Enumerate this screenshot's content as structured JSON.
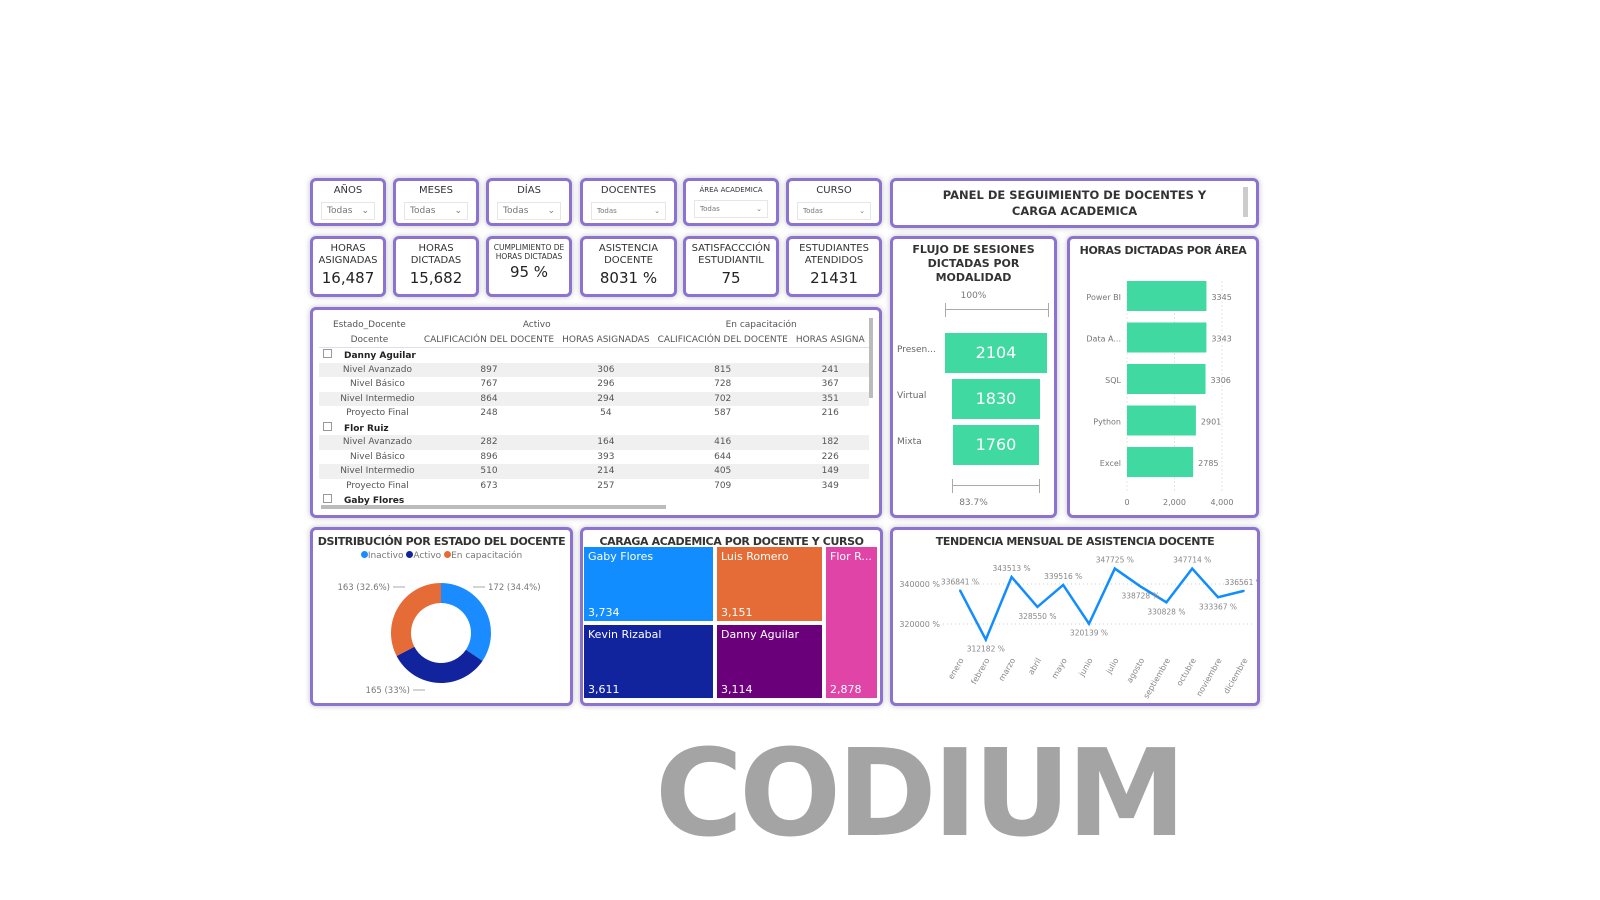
{
  "title": "PANEL DE SEGUIMIENTO DE DOCENTES Y CARGA ACADEMICA",
  "slicers": [
    {
      "label": "AÑOS",
      "value": "Todas"
    },
    {
      "label": "MESES",
      "value": "Todas"
    },
    {
      "label": "DÍAS",
      "value": "Todas"
    },
    {
      "label": "DOCENTES",
      "value": "Todas"
    },
    {
      "label": "ÁREA ACADEMICA",
      "value": "Todas"
    },
    {
      "label": "CURSO",
      "value": "Todas"
    }
  ],
  "kpis": [
    {
      "label": "HORAS ASIGNADAS",
      "value": "16,487"
    },
    {
      "label": "HORAS DICTADAS",
      "value": "15,682"
    },
    {
      "label": "CUMPLIMIENTO DE HORAS DICTADAS",
      "value": "95 %"
    },
    {
      "label": "ASISTENCIA DOCENTE",
      "value": "8031 %"
    },
    {
      "label": "SATISFACCCIÓN ESTUDIANTIL",
      "value": "75"
    },
    {
      "label": "ESTUDIANTES ATENDIDOS",
      "value": "21431"
    }
  ],
  "matrix": {
    "row_header_1": "Estado_Docente",
    "row_header_2": "Docente",
    "groups": [
      "Activo",
      "En capacitación"
    ],
    "columns": [
      "CALIFICACIÓN DEL DOCENTE",
      "HORAS ASIGNADAS",
      "CALIFICACIÓN DEL DOCENTE",
      "HORAS ASIGNA"
    ],
    "teachers": [
      {
        "name": "Danny Aguilar",
        "rows": [
          [
            "Nivel Avanzado",
            "897",
            "306",
            "815",
            "241"
          ],
          [
            "Nivel Básico",
            "767",
            "296",
            "728",
            "367"
          ],
          [
            "Nivel Intermedio",
            "864",
            "294",
            "702",
            "351"
          ],
          [
            "Proyecto Final",
            "248",
            "54",
            "587",
            "216"
          ]
        ]
      },
      {
        "name": "Flor Ruiz",
        "rows": [
          [
            "Nivel Avanzado",
            "282",
            "164",
            "416",
            "182"
          ],
          [
            "Nivel Básico",
            "896",
            "393",
            "644",
            "226"
          ],
          [
            "Nivel Intermedio",
            "510",
            "214",
            "405",
            "149"
          ],
          [
            "Proyecto Final",
            "673",
            "257",
            "709",
            "349"
          ]
        ]
      },
      {
        "name": "Gaby Flores",
        "rows": []
      }
    ]
  },
  "funnel": {
    "title": "FLUJO DE SESIONES DICTADAS POR MODALIDAD",
    "top_pct": "100%",
    "bottom_pct": "83.7%",
    "stages": [
      {
        "label": "Presen...",
        "value": 2104
      },
      {
        "label": "Virtual",
        "value": 1830
      },
      {
        "label": "Mixta",
        "value": 1760
      }
    ],
    "color": "#41d9a2"
  },
  "chart_data": [
    {
      "type": "bar",
      "title": "HORAS DICTADAS POR ÁREA",
      "categories": [
        "Power BI",
        "Data A...",
        "SQL",
        "Python",
        "Excel"
      ],
      "values": [
        3345,
        3343,
        3306,
        2901,
        2785
      ],
      "xlim": [
        0,
        4000
      ],
      "xticks": [
        "0",
        "2,000",
        "4,000"
      ],
      "color": "#41d9a2"
    },
    {
      "type": "pie",
      "title": "DSITRIBUCIÓN POR ESTADO DEL DOCENTE",
      "legend": [
        "Inactivo",
        "Activo",
        "En capacitación"
      ],
      "values": [
        172,
        165,
        163
      ],
      "labels": [
        "172 (34.4%)",
        "165 (33%)",
        "163 (32.6%)"
      ],
      "colors": [
        "#1a8cff",
        "#12239e",
        "#e66c37"
      ],
      "legend_position": "top"
    },
    {
      "type": "treemap",
      "title": "CARAGA ACADEMICA POR DOCENTE Y CURSO",
      "items": [
        {
          "name": "Gaby Flores",
          "value": "3,734",
          "color": "#118dff"
        },
        {
          "name": "Luis Romero",
          "value": "3,151",
          "color": "#e66c37"
        },
        {
          "name": "Kevin Rizabal",
          "value": "3,611",
          "color": "#12239e"
        },
        {
          "name": "Danny Aguilar",
          "value": "3,114",
          "color": "#6b007b"
        },
        {
          "name": "Flor R...",
          "value": "2,878",
          "color": "#e044a7"
        }
      ]
    },
    {
      "type": "line",
      "title": "TENDENCIA MENSUAL DE ASISTENCIA DOCENTE",
      "categories": [
        "enero",
        "febrero",
        "marzo",
        "abril",
        "mayo",
        "junio",
        "julio",
        "agosto",
        "septiembre",
        "octubre",
        "noviembre",
        "diciembre"
      ],
      "values": [
        336841,
        312182,
        343513,
        328550,
        339516,
        320139,
        347725,
        338728,
        330828,
        347714,
        333367,
        336561
      ],
      "yticks": [
        "320000 %",
        "340000 %"
      ],
      "color": "#118dff",
      "grid": true
    }
  ],
  "watermark": "CODIUM"
}
